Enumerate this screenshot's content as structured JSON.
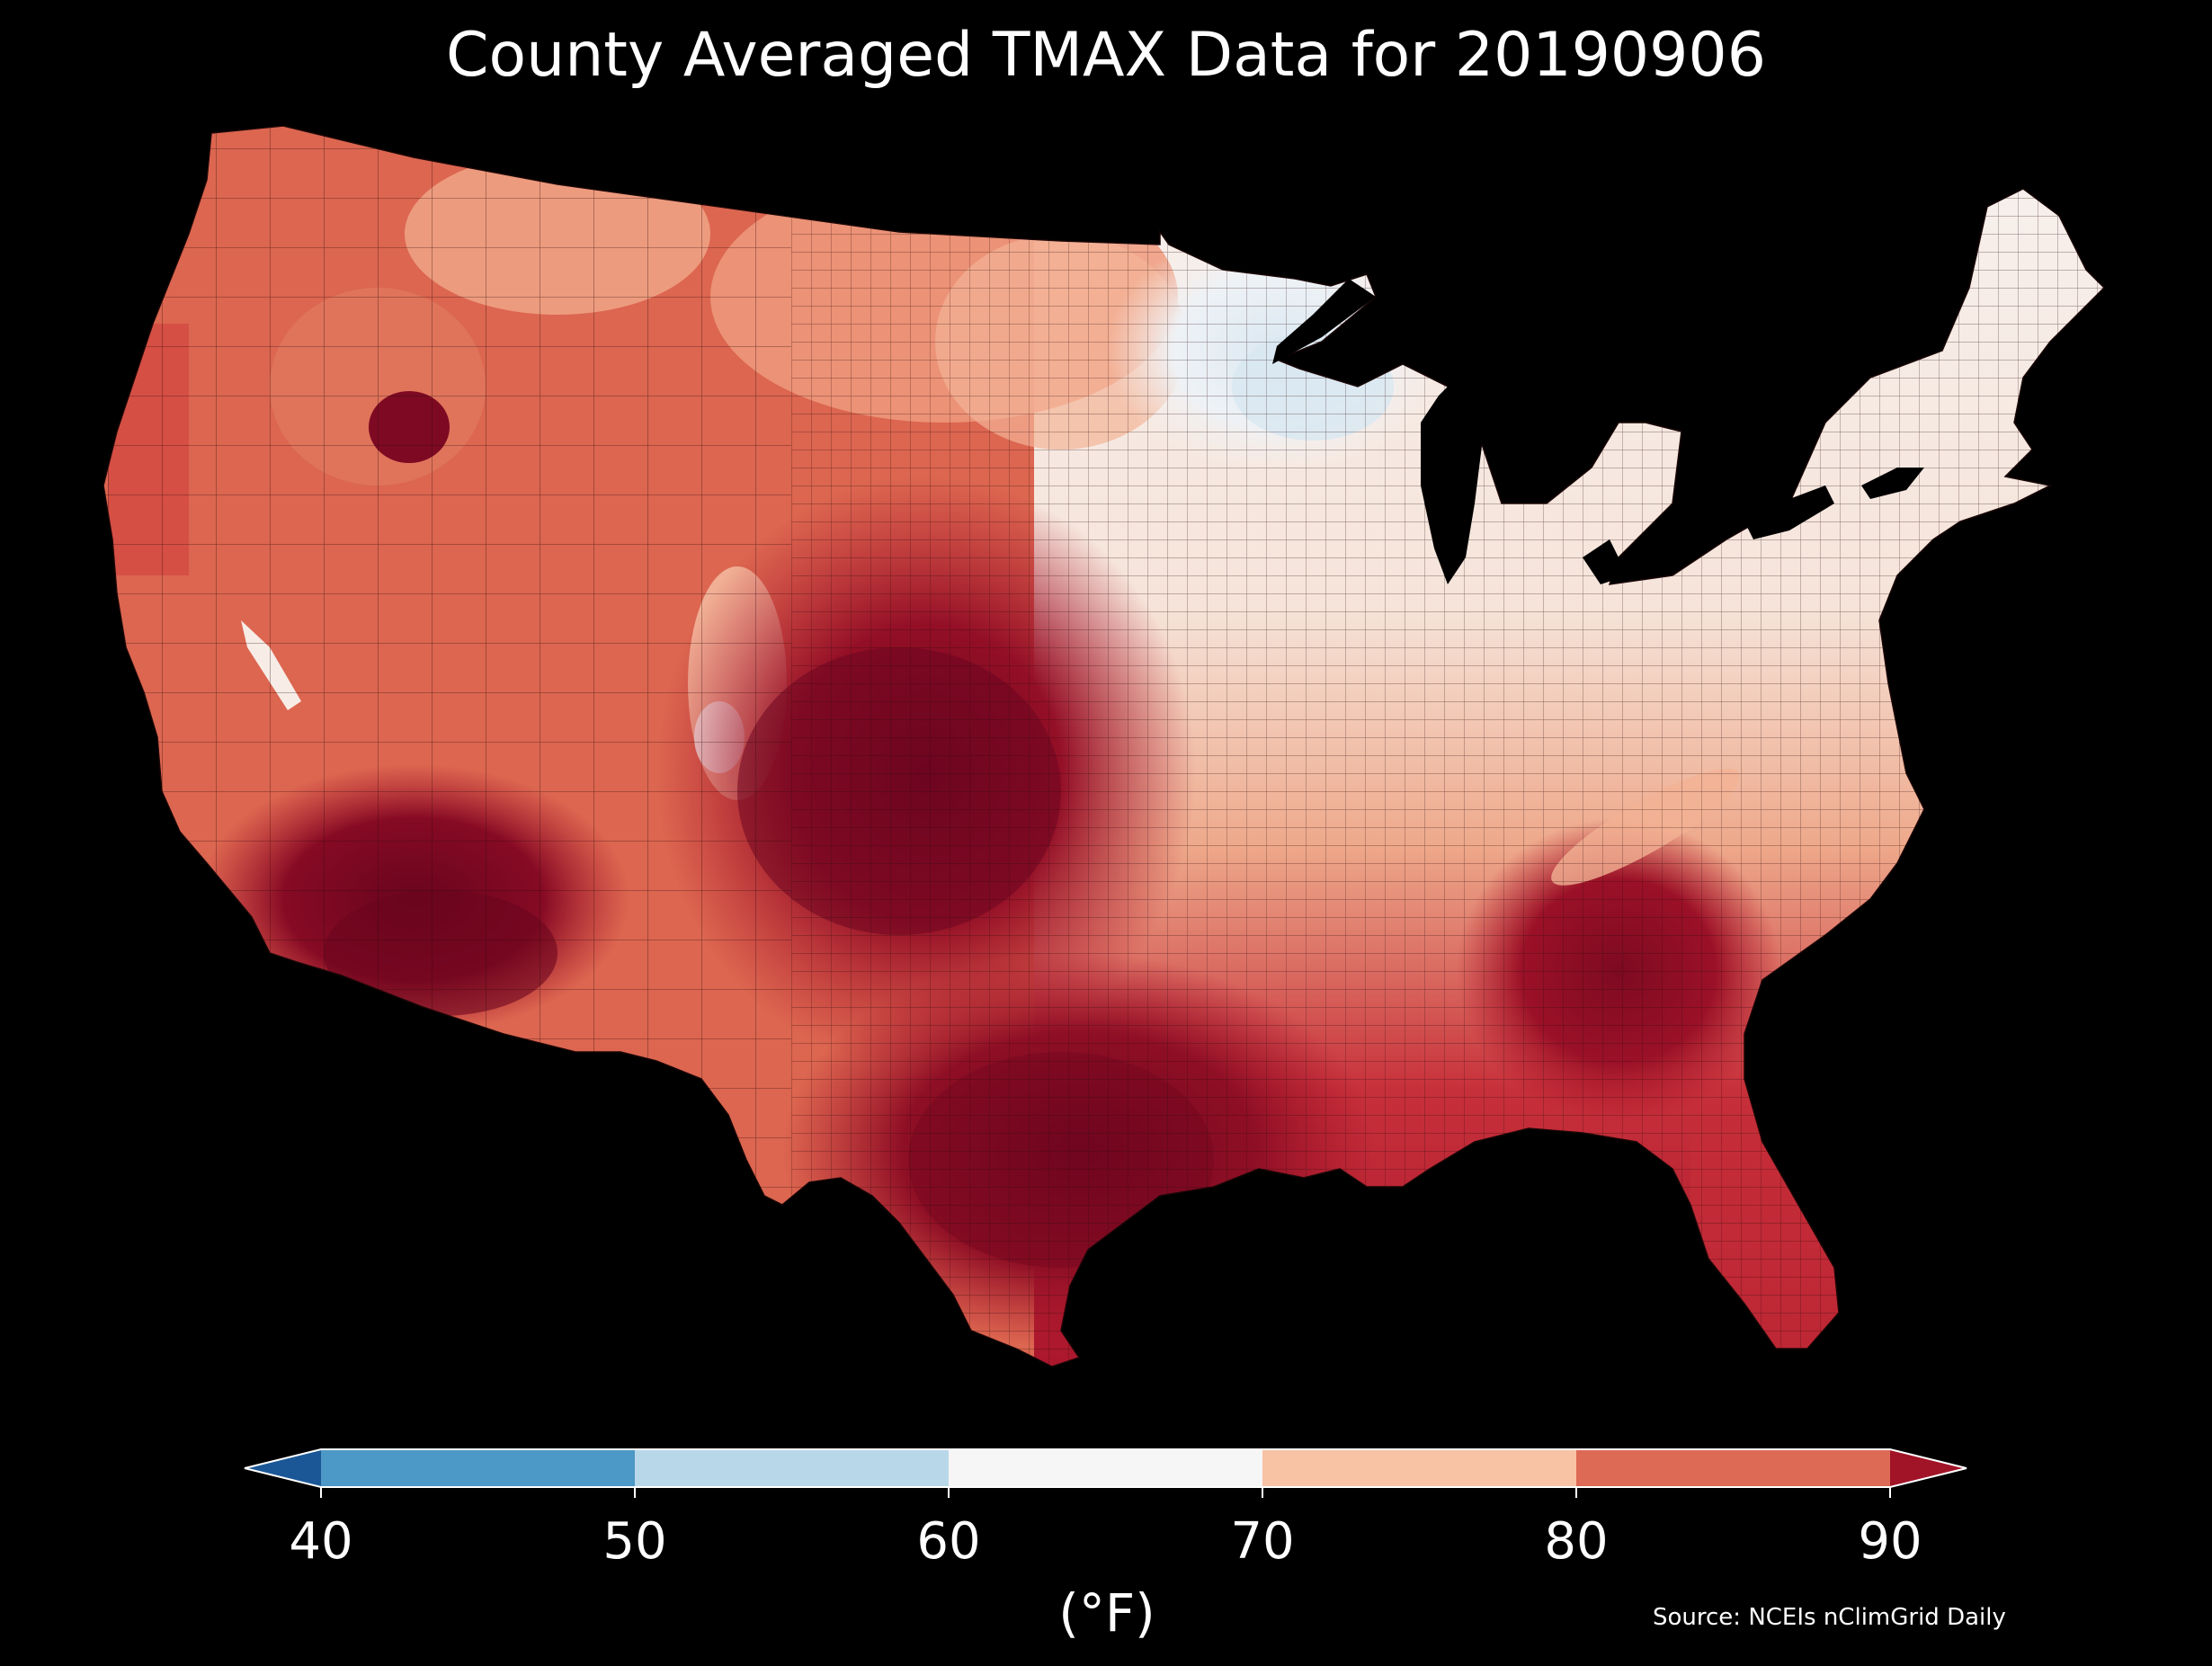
{
  "title": "County Averaged TMAX Data for 20190906",
  "source": "Source: NCEIs nClimGrid Daily",
  "colorbar": {
    "unit_label": "(°F)",
    "ticks": [
      "40",
      "50",
      "60",
      "70",
      "80",
      "90"
    ],
    "bins": [
      {
        "from": 40,
        "to": 50,
        "color": "#4c98c6"
      },
      {
        "from": 50,
        "to": 60,
        "color": "#b8d8ea"
      },
      {
        "from": 60,
        "to": 70,
        "color": "#f6f6f6"
      },
      {
        "from": 70,
        "to": 80,
        "color": "#f8c2a5"
      },
      {
        "from": 80,
        "to": 90,
        "color": "#dd6a55"
      }
    ],
    "under_color": "#1b5796",
    "over_color": "#a11428"
  },
  "map": {
    "region": "Contiguous United States",
    "background": "#000000",
    "county_fill_colors": {
      "hot_core": "#7d0a22",
      "hot": "#b0182c",
      "warm": "#d44c44",
      "mild": "#e9886d",
      "cool": "#f5c8b0",
      "near_white": "#f6eeea",
      "cold": "#e3eef6"
    }
  }
}
